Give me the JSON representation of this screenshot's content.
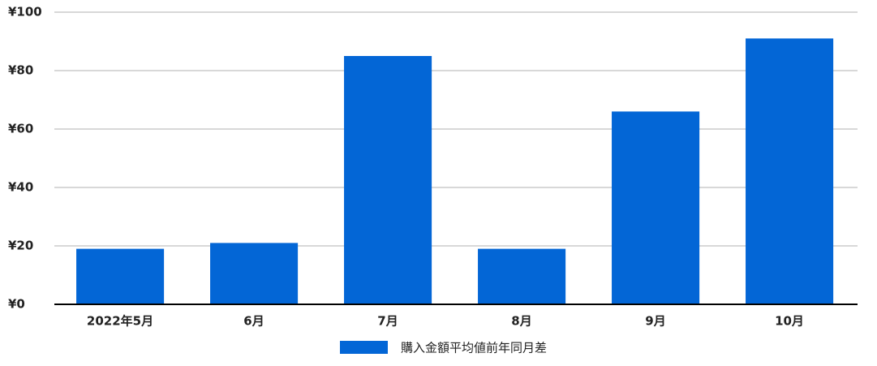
{
  "chart_data": {
    "type": "bar",
    "categories": [
      "2022年5月",
      "6月",
      "7月",
      "8月",
      "9月",
      "10月"
    ],
    "series": [
      {
        "name": "購入金額平均値前年同月差",
        "color": "#0366d6",
        "values": [
          19,
          21,
          85,
          19,
          66,
          91
        ]
      }
    ],
    "ylim": [
      0,
      100
    ],
    "yticks": [
      {
        "value": 0,
        "label": "¥0"
      },
      {
        "value": 20,
        "label": "¥20"
      },
      {
        "value": 40,
        "label": "¥40"
      },
      {
        "value": 60,
        "label": "¥60"
      },
      {
        "value": 80,
        "label": "¥80"
      },
      {
        "value": 100,
        "label": "¥100"
      }
    ],
    "grid": true,
    "legend": "bottom"
  }
}
